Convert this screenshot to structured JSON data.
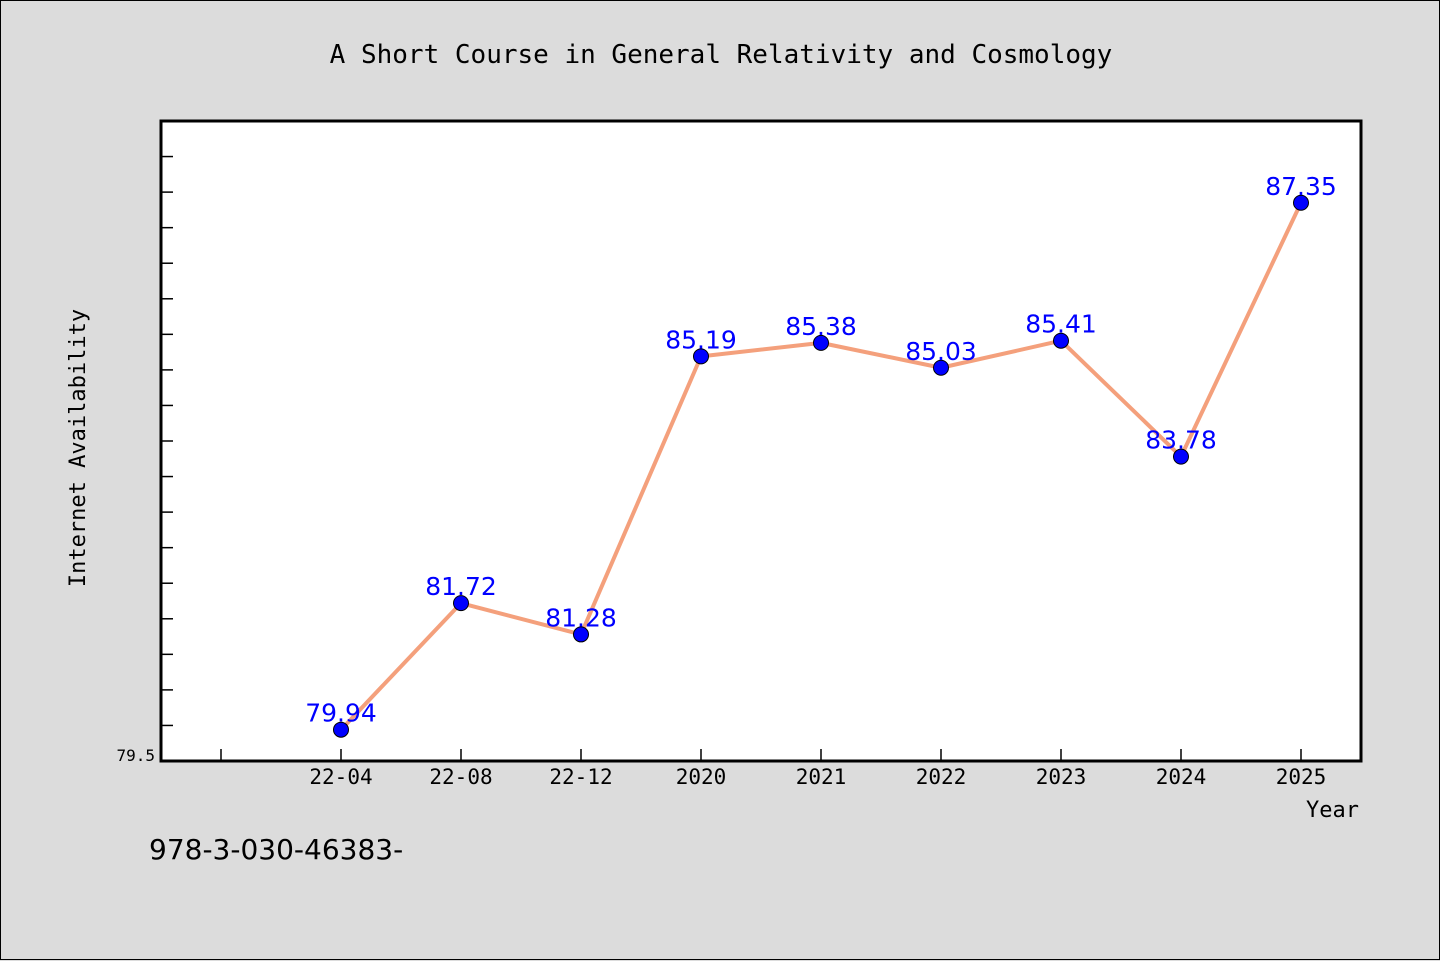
{
  "chart_data": {
    "type": "line",
    "title": "A Short Course in General Relativity and Cosmology",
    "xlabel": "Year",
    "ylabel": "Internet Availability",
    "categories": [
      "22-04",
      "22-08",
      "22-12",
      "2020",
      "2021",
      "2022",
      "2023",
      "2024",
      "2025"
    ],
    "series": [
      {
        "values": [
          79.94,
          81.72,
          81.28,
          85.19,
          85.38,
          85.03,
          85.41,
          83.78,
          87.35
        ],
        "labels": [
          "79.94",
          "81.72",
          "81.28",
          "85.19",
          "85.38",
          "85.03",
          "85.41",
          "83.78",
          "87.35"
        ]
      }
    ],
    "yticks": [
      {
        "value": 79.5,
        "label": "79.5"
      }
    ],
    "ylim": [
      79.5,
      88.5
    ],
    "ytick_minor_step": 0.5,
    "grid": false,
    "legend": "none",
    "colors": {
      "line": "#f4a07c",
      "marker": "#0000ff",
      "label": "#0000ff",
      "plot_background": "#ffffff",
      "figure_background": "#dcdcdc"
    }
  },
  "footer": {
    "code": "978-3-030-46383-"
  }
}
